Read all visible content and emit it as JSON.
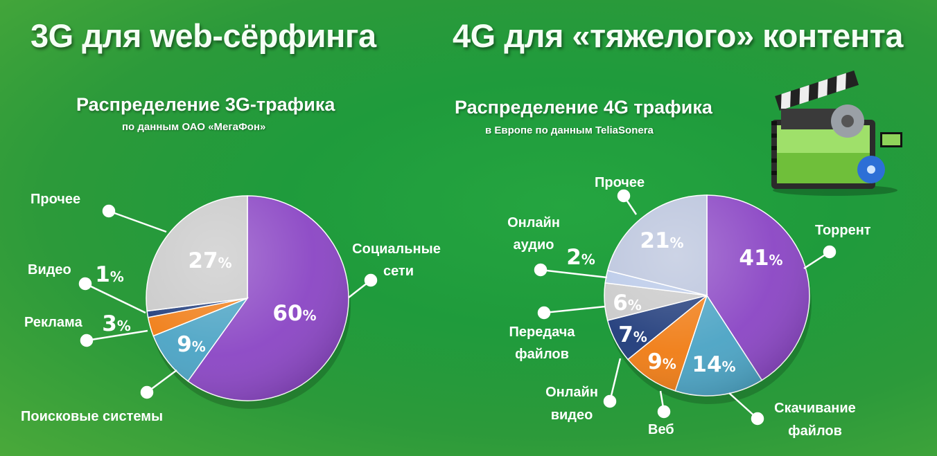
{
  "headings": {
    "left": "3G для web-сёрфинга",
    "right": "4G для «тяжелого» контента"
  },
  "chart_data": [
    {
      "type": "pie",
      "title": "Распределение  3G-трафика",
      "subtitle": "по данным  ОАО «МегаФон»",
      "unit": "%",
      "slices": [
        {
          "label": "Социальные сети",
          "value": 60,
          "color": "#8a45c4"
        },
        {
          "label": "Поисковые системы",
          "value": 9,
          "color": "#4aa3c4"
        },
        {
          "label": "Реклама",
          "value": 3,
          "color": "#f07c14"
        },
        {
          "label": "Видео",
          "value": 1,
          "color": "#1e3a7a"
        },
        {
          "label": "Прочее",
          "value": 27,
          "color": "#c9c9c9"
        }
      ]
    },
    {
      "type": "pie",
      "title": "Распределение 4G трафика",
      "subtitle": "в Европе по данным TeliaSonera",
      "unit": "%",
      "slices": [
        {
          "label": "Торрент",
          "value": 41,
          "color": "#8a45c4"
        },
        {
          "label": "Скачивание файлов",
          "value": 14,
          "color": "#4aa3c4"
        },
        {
          "label": "Веб",
          "value": 9,
          "color": "#f07c14"
        },
        {
          "label": "Онлайн видео",
          "value": 7,
          "color": "#1e3a7a"
        },
        {
          "label": "Передача файлов",
          "value": 6,
          "color": "#c9c9c9"
        },
        {
          "label": "Онлайн аудио",
          "value": 2,
          "color": "#b8c8e8"
        },
        {
          "label": "Прочее",
          "value": 21,
          "color": "#b9c3dc"
        }
      ]
    }
  ]
}
